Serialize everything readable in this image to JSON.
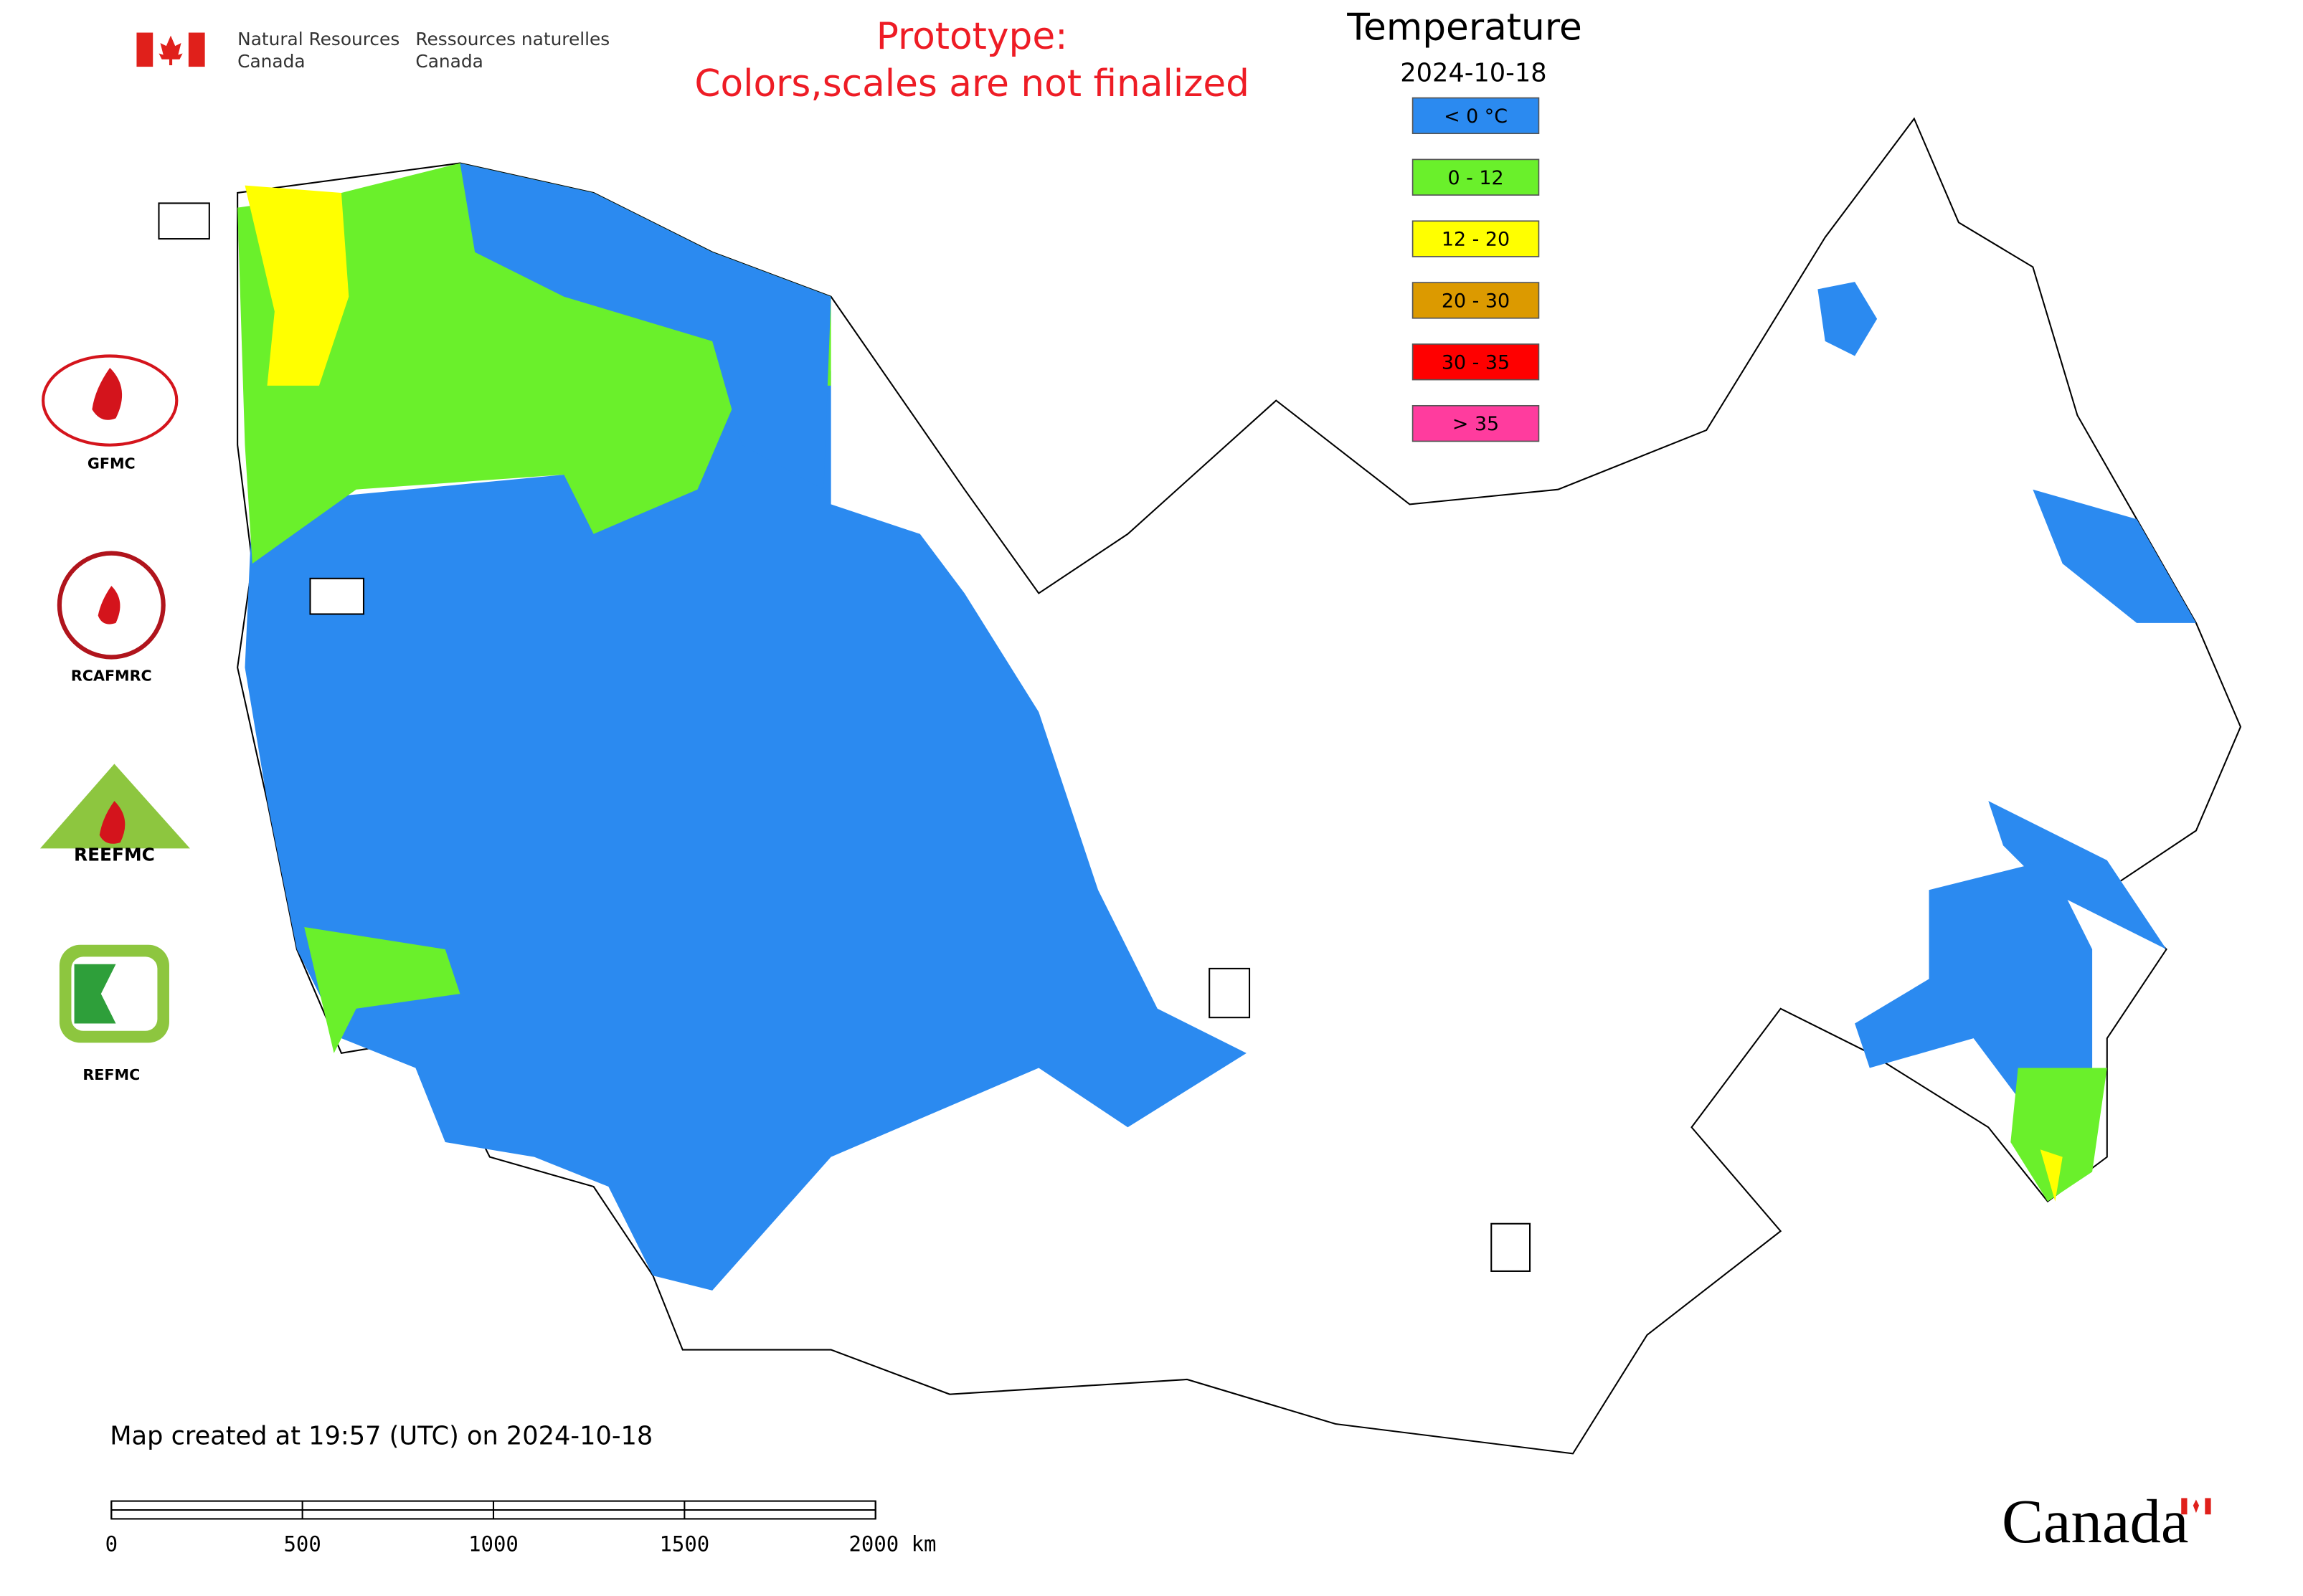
{
  "header": {
    "department_en": [
      "Natural Resources",
      "Canada"
    ],
    "department_fr": [
      "Ressources naturelles",
      "Canada"
    ],
    "notice": [
      "Prototype:",
      "Colors,scales are not finalized"
    ]
  },
  "legend": {
    "title": "Temperature",
    "date": "2024-10-18",
    "items": [
      {
        "label": "< 0 °C",
        "color": "#2b8af0"
      },
      {
        "label": "0 - 12",
        "color": "#6af02b"
      },
      {
        "label": "12 - 20",
        "color": "#ffff00"
      },
      {
        "label": "20 - 30",
        "color": "#dc9a00"
      },
      {
        "label": "30 - 35",
        "color": "#ff0000"
      },
      {
        "label": "> 35",
        "color": "#ff3c9e"
      }
    ]
  },
  "logos": [
    "GFMC",
    "RCAFMRC",
    "REEFMC",
    "REFMC"
  ],
  "footer": {
    "created": "Map created at 19:57 (UTC) on 2024-10-18",
    "wordmark": "Canada"
  },
  "scale_bar": {
    "ticks": [
      0,
      500,
      1000,
      1500,
      {
        "value": 2000,
        "label": "2000 km"
      }
    ]
  }
}
